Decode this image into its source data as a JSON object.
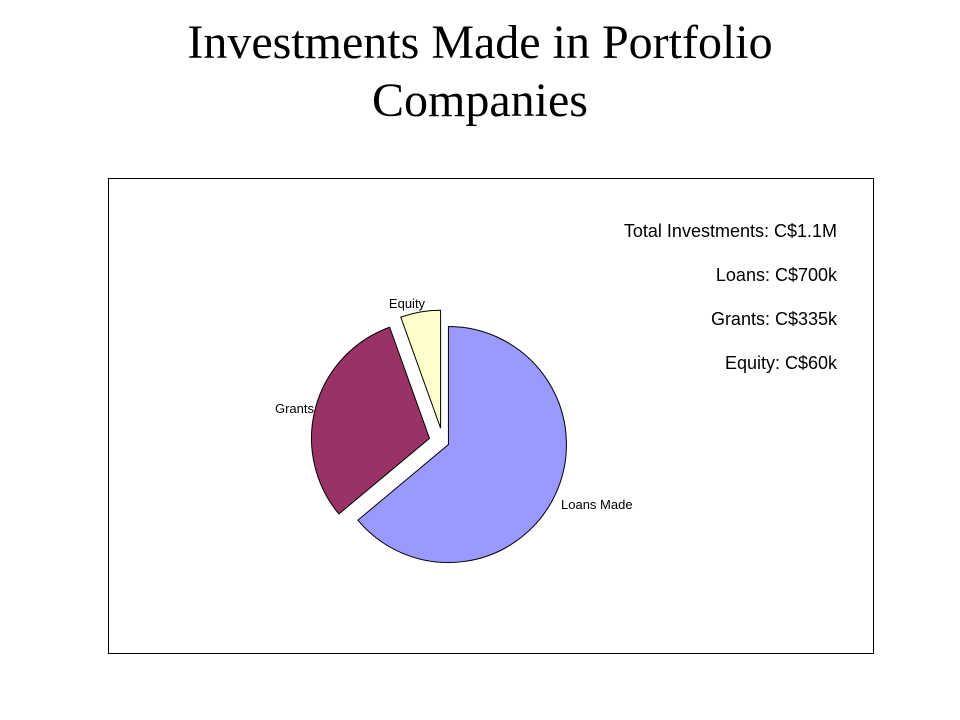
{
  "slide": {
    "title_line1": "Investments Made in Portfolio",
    "title_line2": "Companies"
  },
  "summary": {
    "total": "Total Investments: C$1.1M",
    "loans": "Loans: C$700k",
    "grants": "Grants: C$335k",
    "equity": "Equity: C$60k"
  },
  "chart_data": {
    "type": "pie",
    "title": "",
    "categories": [
      "Loans Made",
      "Grants",
      "Equity"
    ],
    "values": [
      700,
      335,
      60
    ],
    "colors": [
      "#9999FF",
      "#993366",
      "#FFFFCC"
    ],
    "exploded": [
      true,
      true,
      true
    ],
    "legend": "none"
  }
}
